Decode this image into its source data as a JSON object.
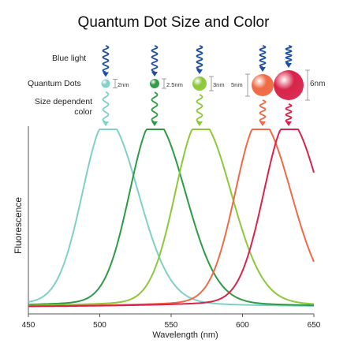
{
  "title": "Quantum Dot Size and Color",
  "labels": {
    "blue_light": "Blue light",
    "quantum_dots": "Quantum Dots",
    "size_dependent_line1": "Size dependent",
    "size_dependent_line2": "color"
  },
  "dots": [
    {
      "size_label": "2nm",
      "size_nm": 2,
      "color": "#7fd0c6",
      "peak_nm": 505
    },
    {
      "size_label": "2.5nm",
      "size_nm": 2.5,
      "color": "#2e9a46",
      "peak_nm": 538
    },
    {
      "size_label": "3nm",
      "size_nm": 3,
      "color": "#8cc83a",
      "peak_nm": 570
    },
    {
      "size_label": "5nm",
      "size_nm": 5,
      "color": "#ef6a45",
      "peak_nm": 612
    },
    {
      "size_label": "6nm",
      "size_nm": 6,
      "color": "#d8244a",
      "peak_nm": 632
    }
  ],
  "blue_light_color": "#1f4fa3",
  "chart_data": {
    "type": "line",
    "xlabel": "Wavelength (nm)",
    "ylabel": "Fluorescence",
    "xlim": [
      450,
      650
    ],
    "x_ticks": [
      "450",
      "500",
      "550",
      "600",
      "650"
    ],
    "series": [
      {
        "peak_nm": 505,
        "color": "#7fd0c6"
      },
      {
        "peak_nm": 538,
        "color": "#2e9a46"
      },
      {
        "peak_nm": 570,
        "color": "#8cc83a"
      },
      {
        "peak_nm": 612,
        "color": "#ef6a45"
      },
      {
        "peak_nm": 632,
        "color": "#d8244a"
      }
    ]
  }
}
